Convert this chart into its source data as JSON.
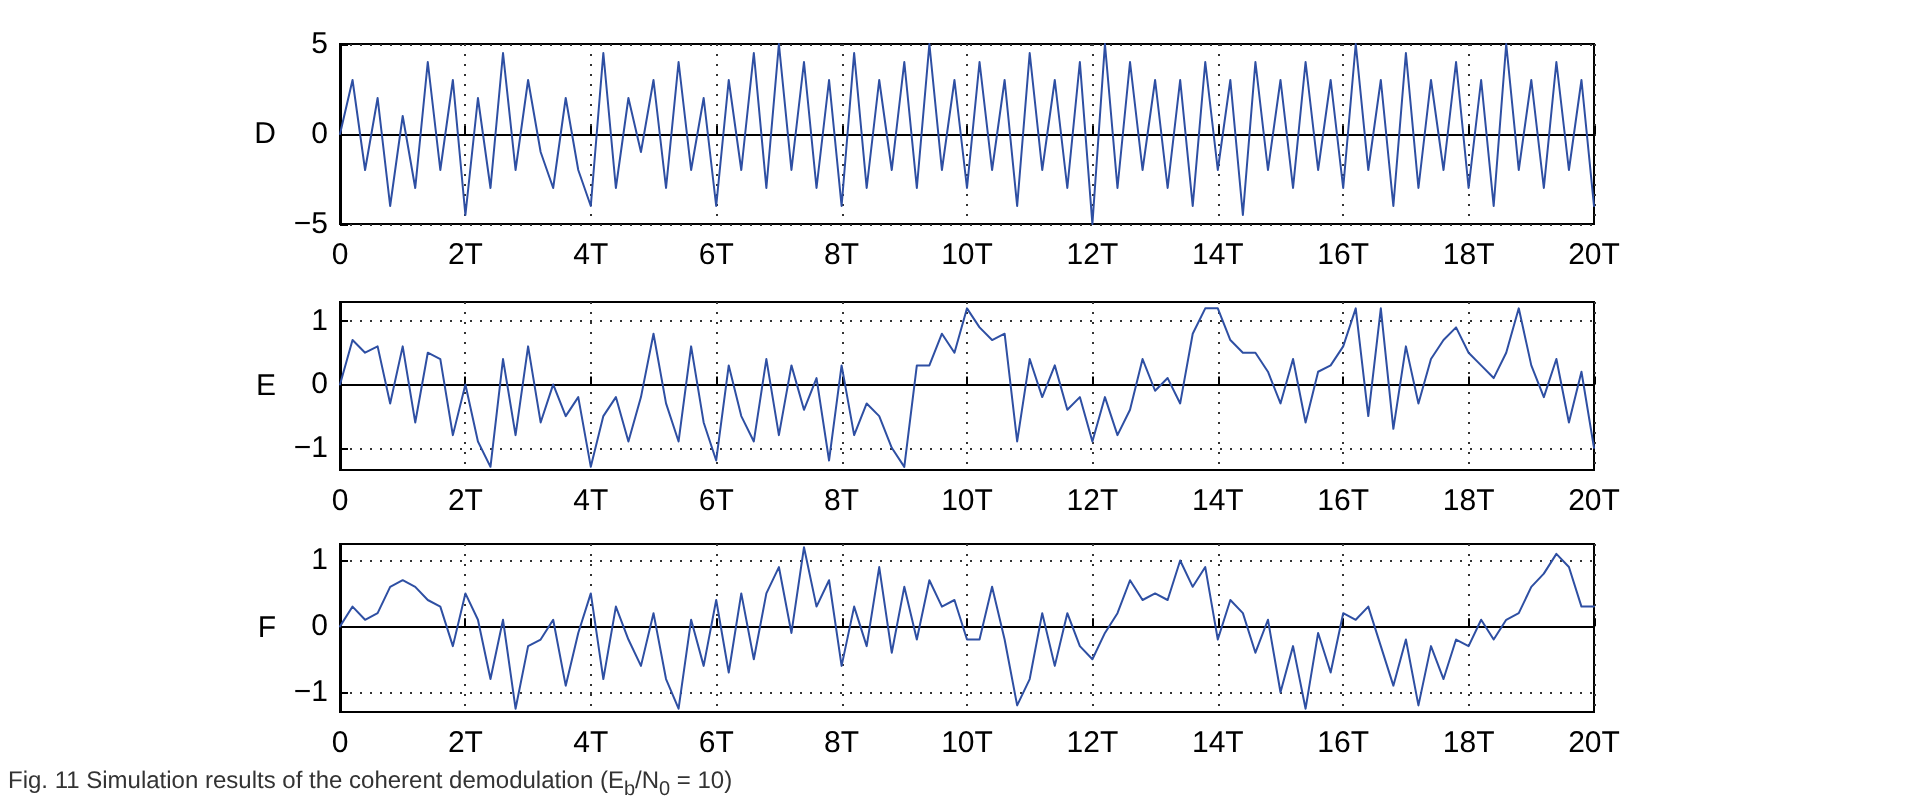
{
  "chart_data": [
    {
      "type": "line",
      "ylabel": "D",
      "xlim": [
        0,
        20
      ],
      "xticks": [
        {
          "value": 0,
          "label": "0"
        },
        {
          "value": 2,
          "label": "2T"
        },
        {
          "value": 4,
          "label": "4T"
        },
        {
          "value": 6,
          "label": "6T"
        },
        {
          "value": 8,
          "label": "8T"
        },
        {
          "value": 10,
          "label": "10T"
        },
        {
          "value": 12,
          "label": "12T"
        },
        {
          "value": 14,
          "label": "14T"
        },
        {
          "value": 16,
          "label": "16T"
        },
        {
          "value": 18,
          "label": "18T"
        },
        {
          "value": 20,
          "label": "20T"
        }
      ],
      "ylim": [
        -5,
        5
      ],
      "yticks": [
        -5,
        0,
        5
      ],
      "grid": true,
      "marker": "none",
      "line_style": "solid",
      "x": [
        0,
        0.2,
        0.4,
        0.6,
        0.8,
        1,
        1.2,
        1.4,
        1.6,
        1.8,
        2,
        2.2,
        2.4,
        2.6,
        2.8,
        3,
        3.2,
        3.4,
        3.6,
        3.8,
        4,
        4.2,
        4.4,
        4.6,
        4.8,
        5,
        5.2,
        5.4,
        5.6,
        5.8,
        6,
        6.2,
        6.4,
        6.6,
        6.8,
        7,
        7.2,
        7.4,
        7.6,
        7.8,
        8,
        8.2,
        8.4,
        8.6,
        8.8,
        9,
        9.2,
        9.4,
        9.6,
        9.8,
        10,
        10.2,
        10.4,
        10.6,
        10.8,
        11,
        11.2,
        11.4,
        11.6,
        11.8,
        12,
        12.2,
        12.4,
        12.6,
        12.8,
        13,
        13.2,
        13.4,
        13.6,
        13.8,
        14,
        14.2,
        14.4,
        14.6,
        14.8,
        15,
        15.2,
        15.4,
        15.6,
        15.8,
        16,
        16.2,
        16.4,
        16.6,
        16.8,
        17,
        17.2,
        17.4,
        17.6,
        17.8,
        18,
        18.2,
        18.4,
        18.6,
        18.8,
        19,
        19.2,
        19.4,
        19.6,
        19.8,
        20
      ],
      "series": [
        {
          "color": "#2e4fa3",
          "values": [
            0,
            3,
            -2,
            2,
            -4,
            1,
            -3,
            4,
            -2,
            3,
            -4.5,
            2,
            -3,
            4.5,
            -2,
            3,
            -1,
            -3,
            2,
            -2,
            -4,
            4.5,
            -3,
            2,
            -1,
            3,
            -3,
            4,
            -2,
            2,
            -4,
            3,
            -2,
            4.5,
            -3,
            5,
            -2,
            4,
            -3,
            3,
            -4,
            4.5,
            -3,
            3,
            -2,
            4,
            -3,
            5,
            -2,
            3,
            -3,
            4,
            -2,
            3,
            -4,
            4.5,
            -2,
            3,
            -3,
            4,
            -5,
            5,
            -3,
            4,
            -2,
            3,
            -3,
            3,
            -4,
            4,
            -2,
            3,
            -4.5,
            4,
            -2,
            3,
            -3,
            4,
            -2,
            3,
            -3,
            5,
            -2,
            3,
            -4,
            4.5,
            -3,
            3,
            -2,
            4,
            -3,
            3,
            -4,
            5,
            -2,
            3,
            -3,
            4,
            -2,
            3,
            -4
          ]
        }
      ]
    },
    {
      "type": "line",
      "ylabel": "E",
      "xlim": [
        0,
        20
      ],
      "xticks": [
        {
          "value": 0,
          "label": "0"
        },
        {
          "value": 2,
          "label": "2T"
        },
        {
          "value": 4,
          "label": "4T"
        },
        {
          "value": 6,
          "label": "6T"
        },
        {
          "value": 8,
          "label": "8T"
        },
        {
          "value": 10,
          "label": "10T"
        },
        {
          "value": 12,
          "label": "12T"
        },
        {
          "value": 14,
          "label": "14T"
        },
        {
          "value": 16,
          "label": "16T"
        },
        {
          "value": 18,
          "label": "18T"
        },
        {
          "value": 20,
          "label": "20T"
        }
      ],
      "ylim": [
        -1.35,
        1.3
      ],
      "yticks": [
        -1,
        0,
        1
      ],
      "grid": true,
      "marker": "none",
      "line_style": "solid",
      "x": [
        0,
        0.2,
        0.4,
        0.6,
        0.8,
        1,
        1.2,
        1.4,
        1.6,
        1.8,
        2,
        2.2,
        2.4,
        2.6,
        2.8,
        3,
        3.2,
        3.4,
        3.6,
        3.8,
        4,
        4.2,
        4.4,
        4.6,
        4.8,
        5,
        5.2,
        5.4,
        5.6,
        5.8,
        6,
        6.2,
        6.4,
        6.6,
        6.8,
        7,
        7.2,
        7.4,
        7.6,
        7.8,
        8,
        8.2,
        8.4,
        8.6,
        8.8,
        9,
        9.2,
        9.4,
        9.6,
        9.8,
        10,
        10.2,
        10.4,
        10.6,
        10.8,
        11,
        11.2,
        11.4,
        11.6,
        11.8,
        12,
        12.2,
        12.4,
        12.6,
        12.8,
        13,
        13.2,
        13.4,
        13.6,
        13.8,
        14,
        14.2,
        14.4,
        14.6,
        14.8,
        15,
        15.2,
        15.4,
        15.6,
        15.8,
        16,
        16.2,
        16.4,
        16.6,
        16.8,
        17,
        17.2,
        17.4,
        17.6,
        17.8,
        18,
        18.2,
        18.4,
        18.6,
        18.8,
        19,
        19.2,
        19.4,
        19.6,
        19.8,
        20
      ],
      "series": [
        {
          "color": "#2e4fa3",
          "values": [
            0,
            0.7,
            0.5,
            0.6,
            -0.3,
            0.6,
            -0.6,
            0.5,
            0.4,
            -0.8,
            0,
            -0.9,
            -1.3,
            0.4,
            -0.8,
            0.6,
            -0.6,
            0,
            -0.5,
            -0.2,
            -1.3,
            -0.5,
            -0.2,
            -0.9,
            -0.2,
            0.8,
            -0.3,
            -0.9,
            0.6,
            -0.6,
            -1.2,
            0.3,
            -0.5,
            -0.9,
            0.4,
            -0.8,
            0.3,
            -0.4,
            0.1,
            -1.2,
            0.3,
            -0.8,
            -0.3,
            -0.5,
            -1,
            -1.3,
            0.3,
            0.3,
            0.8,
            0.5,
            1.2,
            0.9,
            0.7,
            0.8,
            -0.9,
            0.4,
            -0.2,
            0.3,
            -0.4,
            -0.2,
            -0.9,
            -0.2,
            -0.8,
            -0.4,
            0.4,
            -0.1,
            0.1,
            -0.3,
            0.8,
            1.2,
            1.2,
            0.7,
            0.5,
            0.5,
            0.2,
            -0.3,
            0.4,
            -0.6,
            0.2,
            0.3,
            0.6,
            1.2,
            -0.5,
            1.2,
            -0.7,
            0.6,
            -0.3,
            0.4,
            0.7,
            0.9,
            0.5,
            0.3,
            0.1,
            0.5,
            1.2,
            0.3,
            -0.2,
            0.4,
            -0.6,
            0.2,
            -1
          ]
        }
      ]
    },
    {
      "type": "line",
      "ylabel": "F",
      "xlim": [
        0,
        20
      ],
      "xticks": [
        {
          "value": 0,
          "label": "0"
        },
        {
          "value": 2,
          "label": "2T"
        },
        {
          "value": 4,
          "label": "4T"
        },
        {
          "value": 6,
          "label": "6T"
        },
        {
          "value": 8,
          "label": "8T"
        },
        {
          "value": 10,
          "label": "10T"
        },
        {
          "value": 12,
          "label": "12T"
        },
        {
          "value": 14,
          "label": "14T"
        },
        {
          "value": 16,
          "label": "16T"
        },
        {
          "value": 18,
          "label": "18T"
        },
        {
          "value": 20,
          "label": "20T"
        }
      ],
      "ylim": [
        -1.3,
        1.25
      ],
      "yticks": [
        -1,
        0,
        1
      ],
      "grid": true,
      "marker": "none",
      "line_style": "solid",
      "annotations": [
        "Fig. 11 Simulation results of the coherent demodulation (E$_{b}$/N$_{0}$ = 10)"
      ],
      "x": [
        0,
        0.2,
        0.4,
        0.6,
        0.8,
        1,
        1.2,
        1.4,
        1.6,
        1.8,
        2,
        2.2,
        2.4,
        2.6,
        2.8,
        3,
        3.2,
        3.4,
        3.6,
        3.8,
        4,
        4.2,
        4.4,
        4.6,
        4.8,
        5,
        5.2,
        5.4,
        5.6,
        5.8,
        6,
        6.2,
        6.4,
        6.6,
        6.8,
        7,
        7.2,
        7.4,
        7.6,
        7.8,
        8,
        8.2,
        8.4,
        8.6,
        8.8,
        9,
        9.2,
        9.4,
        9.6,
        9.8,
        10,
        10.2,
        10.4,
        10.6,
        10.8,
        11,
        11.2,
        11.4,
        11.6,
        11.8,
        12,
        12.2,
        12.4,
        12.6,
        12.8,
        13,
        13.2,
        13.4,
        13.6,
        13.8,
        14,
        14.2,
        14.4,
        14.6,
        14.8,
        15,
        15.2,
        15.4,
        15.6,
        15.8,
        16,
        16.2,
        16.4,
        16.6,
        16.8,
        17,
        17.2,
        17.4,
        17.6,
        17.8,
        18,
        18.2,
        18.4,
        18.6,
        18.8,
        19,
        19.2,
        19.4,
        19.6,
        19.8,
        20
      ],
      "series": [
        {
          "color": "#2e4fa3",
          "values": [
            0,
            0.3,
            0.1,
            0.2,
            0.6,
            0.7,
            0.6,
            0.4,
            0.3,
            -0.3,
            0.5,
            0.1,
            -0.8,
            0.1,
            -1.25,
            -0.3,
            -0.2,
            0.1,
            -0.9,
            -0.1,
            0.5,
            -0.8,
            0.3,
            -0.2,
            -0.6,
            0.2,
            -0.8,
            -1.25,
            0.1,
            -0.6,
            0.4,
            -0.7,
            0.5,
            -0.5,
            0.5,
            0.9,
            -0.1,
            1.2,
            0.3,
            0.7,
            -0.6,
            0.3,
            -0.3,
            0.9,
            -0.4,
            0.6,
            -0.2,
            0.7,
            0.3,
            0.4,
            -0.2,
            -0.2,
            0.6,
            -0.2,
            -1.2,
            -0.8,
            0.2,
            -0.6,
            0.2,
            -0.3,
            -0.5,
            -0.1,
            0.2,
            0.7,
            0.4,
            0.5,
            0.4,
            1,
            0.6,
            0.9,
            -0.2,
            0.4,
            0.2,
            -0.4,
            0.1,
            -1,
            -0.3,
            -1.25,
            -0.1,
            -0.7,
            0.2,
            0.1,
            0.3,
            -0.3,
            -0.9,
            -0.2,
            -1.2,
            -0.3,
            -0.8,
            -0.2,
            -0.3,
            0.1,
            -0.2,
            0.1,
            0.2,
            0.6,
            0.8,
            1.1,
            0.9,
            0.3,
            0.3
          ]
        }
      ]
    }
  ]
}
